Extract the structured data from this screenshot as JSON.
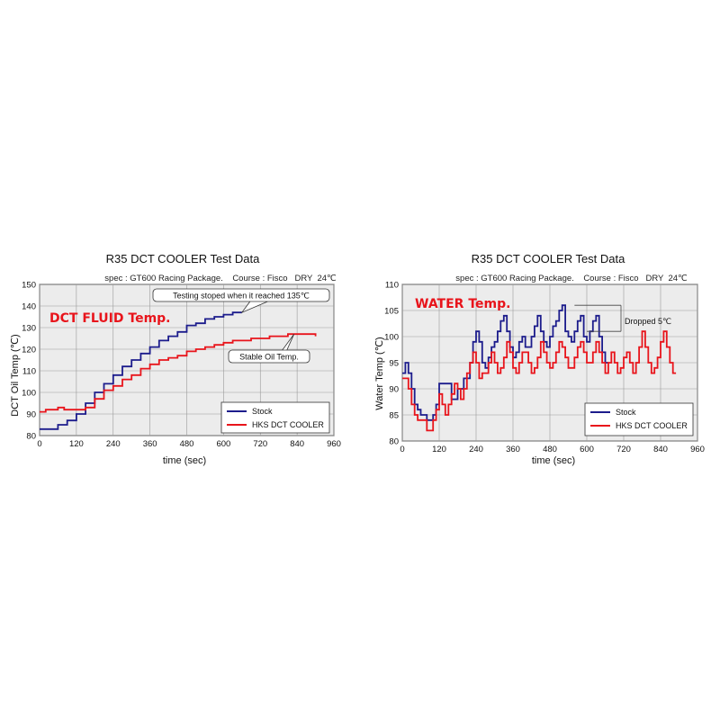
{
  "colors": {
    "stock": "#1c1c8c",
    "hks": "#e8141b",
    "plot_bg": "#ececec",
    "grid": "#9a9a9a"
  },
  "chart_data": [
    {
      "type": "line",
      "title": "R35 DCT COOLER Test Data",
      "subtitle": "spec : GT600 Racing Package.    Course : Fisco   DRY  24℃",
      "overlay_label": "DCT FLUID Temp.",
      "xlabel": "time (sec)",
      "ylabel": "DCT Oil Temp (℃)",
      "xlim": [
        0,
        960
      ],
      "ylim": [
        80,
        150
      ],
      "xticks": [
        0,
        120,
        240,
        360,
        480,
        600,
        720,
        840,
        960
      ],
      "yticks": [
        80,
        90,
        100,
        110,
        120,
        130,
        140,
        150
      ],
      "grid": true,
      "legend": "bottom-right",
      "annotations": [
        {
          "text": "Testing stoped when it reached 135℃",
          "x": 660,
          "y": 137
        },
        {
          "text": "Stable Oil Temp.",
          "x": 830,
          "y": 127
        }
      ],
      "series": [
        {
          "name": "Stock",
          "x": [
            0,
            50,
            60,
            90,
            120,
            150,
            180,
            210,
            240,
            270,
            300,
            330,
            360,
            390,
            420,
            450,
            480,
            510,
            540,
            570,
            600,
            630,
            660
          ],
          "y": [
            83,
            83,
            85,
            87,
            90,
            95,
            100,
            104,
            108,
            112,
            115,
            118,
            121,
            124,
            126,
            128,
            131,
            132,
            134,
            135,
            136,
            137,
            137
          ]
        },
        {
          "name": "HKS DCT COOLER",
          "x": [
            0,
            20,
            50,
            60,
            80,
            120,
            150,
            180,
            210,
            240,
            270,
            300,
            330,
            360,
            390,
            420,
            450,
            480,
            510,
            540,
            570,
            600,
            630,
            660,
            690,
            720,
            750,
            780,
            810,
            840,
            870,
            900
          ],
          "y": [
            91,
            92,
            92,
            93,
            92,
            92,
            93,
            97,
            101,
            103,
            106,
            108,
            111,
            113,
            115,
            116,
            117,
            119,
            120,
            121,
            122,
            123,
            124,
            124,
            125,
            125,
            126,
            126,
            127,
            127,
            127,
            126
          ]
        }
      ]
    },
    {
      "type": "line",
      "title": "R35 DCT COOLER Test Data",
      "subtitle": "spec : GT600 Racing Package.    Course : Fisco   DRY  24℃",
      "overlay_label": "WATER Temp.",
      "xlabel": "time (sec)",
      "ylabel": "Water Temp (℃)",
      "xlim": [
        0,
        960
      ],
      "ylim": [
        80,
        110
      ],
      "xticks": [
        0,
        120,
        240,
        360,
        480,
        600,
        720,
        840,
        960
      ],
      "yticks": [
        80,
        85,
        90,
        95,
        100,
        105,
        110
      ],
      "grid": true,
      "legend": "bottom-right",
      "annotations": [
        {
          "text": "Dropped 5℃",
          "x": 700,
          "y": 103
        }
      ],
      "series": [
        {
          "name": "Stock",
          "x": [
            0,
            10,
            20,
            30,
            40,
            50,
            60,
            70,
            80,
            90,
            100,
            110,
            120,
            140,
            160,
            180,
            200,
            220,
            230,
            240,
            250,
            260,
            270,
            280,
            290,
            300,
            310,
            320,
            330,
            340,
            350,
            360,
            370,
            380,
            390,
            400,
            410,
            420,
            430,
            440,
            450,
            460,
            470,
            480,
            490,
            500,
            510,
            520,
            530,
            540,
            550,
            560,
            570,
            580,
            590,
            600,
            610,
            620,
            630,
            640,
            650,
            660,
            670
          ],
          "y": [
            93,
            95,
            93,
            90,
            87,
            86,
            85,
            85,
            84,
            84,
            85,
            87,
            91,
            91,
            88,
            90,
            92,
            95,
            99,
            101,
            99,
            95,
            94,
            96,
            98,
            99,
            101,
            103,
            104,
            101,
            98,
            96,
            97,
            99,
            100,
            98,
            98,
            100,
            102,
            104,
            101,
            99,
            98,
            100,
            102,
            103,
            105,
            106,
            101,
            100,
            99,
            101,
            103,
            104,
            100,
            99,
            101,
            103,
            104,
            100,
            97,
            95,
            95
          ]
        },
        {
          "name": "HKS DCT COOLER",
          "x": [
            0,
            10,
            20,
            30,
            40,
            50,
            60,
            70,
            80,
            90,
            100,
            110,
            120,
            130,
            140,
            150,
            160,
            170,
            180,
            190,
            200,
            210,
            220,
            230,
            240,
            250,
            260,
            270,
            280,
            290,
            300,
            310,
            320,
            330,
            340,
            350,
            360,
            370,
            380,
            390,
            400,
            410,
            420,
            430,
            440,
            450,
            460,
            470,
            480,
            490,
            500,
            510,
            520,
            530,
            540,
            550,
            560,
            570,
            580,
            590,
            600,
            610,
            620,
            630,
            640,
            650,
            660,
            670,
            680,
            690,
            700,
            710,
            720,
            730,
            740,
            750,
            760,
            770,
            780,
            790,
            800,
            810,
            820,
            830,
            840,
            850,
            860,
            870,
            880,
            890
          ],
          "y": [
            92,
            92,
            90,
            87,
            85,
            84,
            84,
            84,
            82,
            82,
            84,
            86,
            89,
            87,
            85,
            87,
            89,
            91,
            90,
            88,
            90,
            93,
            95,
            97,
            95,
            92,
            93,
            93,
            95,
            97,
            95,
            93,
            94,
            96,
            99,
            97,
            94,
            93,
            95,
            97,
            97,
            95,
            93,
            94,
            96,
            99,
            97,
            95,
            94,
            95,
            97,
            99,
            98,
            96,
            94,
            94,
            96,
            98,
            99,
            97,
            95,
            95,
            97,
            99,
            97,
            95,
            93,
            95,
            97,
            95,
            93,
            94,
            96,
            97,
            95,
            93,
            95,
            98,
            101,
            98,
            95,
            93,
            94,
            96,
            99,
            101,
            98,
            95,
            93,
            93
          ]
        }
      ]
    }
  ],
  "legend_labels": {
    "stock": "Stock",
    "hks": "HKS DCT COOLER"
  }
}
